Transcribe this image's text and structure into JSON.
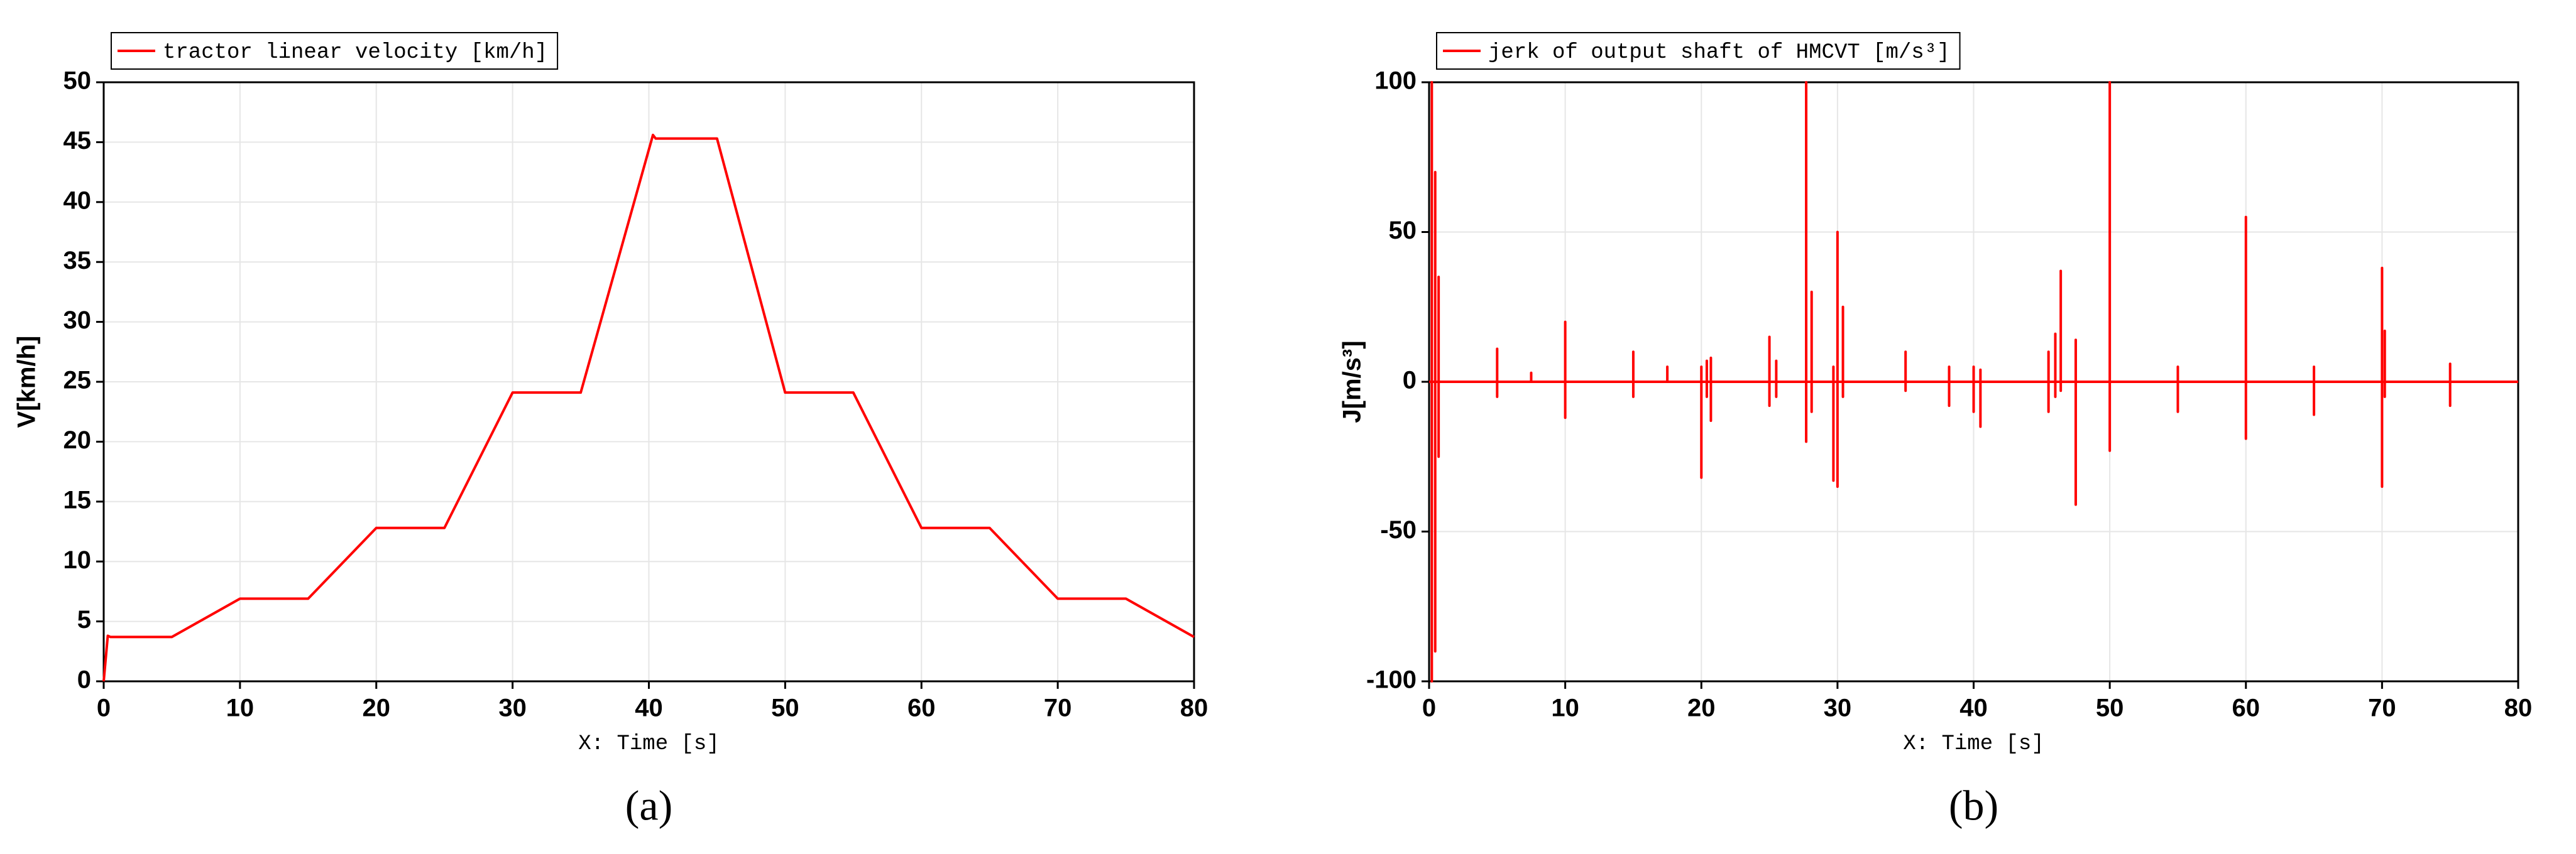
{
  "chart_data": [
    {
      "type": "line",
      "legend_position": "top-left",
      "grid": true,
      "xlabel": "X: Time [s]",
      "ylabel": "V[km/h]",
      "panel_label": "(a)",
      "xlim": [
        0,
        80
      ],
      "ylim": [
        0,
        50
      ],
      "xticks": [
        0,
        10,
        20,
        30,
        40,
        50,
        60,
        70,
        80
      ],
      "yticks": [
        0,
        5,
        10,
        15,
        20,
        25,
        30,
        35,
        40,
        45,
        50
      ],
      "x": [
        0,
        0.3,
        0.5,
        5,
        10,
        15,
        20,
        25,
        30,
        35,
        40.3,
        40.5,
        45,
        50,
        55,
        60,
        65,
        70,
        75,
        80
      ],
      "series": [
        {
          "name": "tractor linear velocity [km/h]",
          "color": "#ff0000",
          "values": [
            0,
            3.8,
            3.7,
            3.7,
            6.9,
            6.9,
            12.8,
            12.8,
            24.1,
            24.1,
            45.6,
            45.3,
            45.3,
            24.1,
            24.1,
            12.8,
            12.8,
            6.9,
            6.9,
            3.7
          ]
        }
      ]
    },
    {
      "type": "line",
      "legend_position": "top-left",
      "grid": true,
      "xlabel": "X: Time [s]",
      "ylabel": "J[m/s³]",
      "panel_label": "(b)",
      "xlim": [
        0,
        80
      ],
      "ylim": [
        -100,
        100
      ],
      "xticks": [
        0,
        10,
        20,
        30,
        40,
        50,
        60,
        70,
        80
      ],
      "yticks": [
        -100,
        -50,
        0,
        50,
        100
      ],
      "x": [
        0,
        0.2,
        0.2,
        0.2,
        0.2,
        0.45,
        0.45,
        0.45,
        0.45,
        0.7,
        0.7,
        0.7,
        0.7,
        5,
        5,
        5,
        5,
        7.5,
        7.5,
        7.5,
        7.5,
        10,
        10,
        10,
        10,
        15,
        15,
        15,
        15,
        17.5,
        17.5,
        17.5,
        17.5,
        20,
        20,
        20,
        20,
        20.4,
        20.4,
        20.4,
        20.4,
        20.7,
        20.7,
        20.7,
        20.7,
        25,
        25,
        25,
        25,
        25.5,
        25.5,
        25.5,
        25.5,
        27.7,
        27.7,
        27.7,
        27.7,
        28.1,
        28.1,
        28.1,
        28.1,
        29.7,
        29.7,
        29.7,
        29.7,
        30,
        30,
        30,
        30,
        30.4,
        30.4,
        30.4,
        30.4,
        35,
        35,
        35,
        35,
        38.2,
        38.2,
        38.2,
        38.2,
        40,
        40,
        40,
        40,
        40.5,
        40.5,
        40.5,
        40.5,
        45.5,
        45.5,
        45.5,
        45.5,
        46,
        46,
        46,
        46,
        46.4,
        46.4,
        46.4,
        46.4,
        47.5,
        47.5,
        47.5,
        47.5,
        50,
        50,
        50,
        50,
        55,
        55,
        55,
        55,
        60,
        60,
        60,
        60,
        65,
        65,
        65,
        65,
        70,
        70,
        70,
        70,
        70.2,
        70.2,
        70.2,
        70.2,
        75,
        75,
        75,
        75,
        80
      ],
      "series": [
        {
          "name": "jerk of output shaft of HMCVT [m/s³]",
          "color": "#ff0000",
          "values": [
            0,
            0,
            100,
            -100,
            0,
            0,
            70,
            -90,
            0,
            0,
            35,
            -25,
            0,
            0,
            11,
            -5,
            0,
            0,
            3,
            0,
            0,
            0,
            20,
            -12,
            0,
            0,
            10,
            -5,
            0,
            0,
            5,
            0,
            0,
            0,
            5,
            -32,
            0,
            0,
            7,
            -5,
            0,
            0,
            8,
            -13,
            0,
            0,
            15,
            -8,
            0,
            0,
            7,
            -5,
            0,
            0,
            100,
            -20,
            0,
            0,
            30,
            -10,
            0,
            0,
            5,
            -33,
            0,
            0,
            50,
            -35,
            0,
            0,
            25,
            -5,
            0,
            0,
            10,
            -3,
            0,
            0,
            5,
            -8,
            0,
            0,
            5,
            -10,
            0,
            0,
            4,
            -15,
            0,
            0,
            10,
            -10,
            0,
            0,
            16,
            -5,
            0,
            0,
            37,
            -3,
            0,
            0,
            14,
            -41,
            0,
            0,
            100,
            -23,
            0,
            0,
            5,
            -10,
            0,
            0,
            55,
            -19,
            0,
            0,
            5,
            -11,
            0,
            0,
            38,
            -35,
            0,
            0,
            17,
            -5,
            0,
            0,
            6,
            -8,
            0,
            0
          ]
        }
      ]
    }
  ]
}
